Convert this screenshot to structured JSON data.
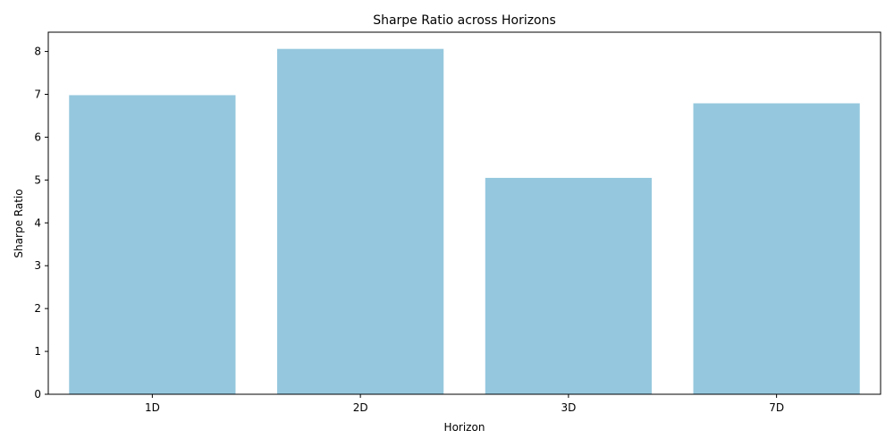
{
  "chart_data": {
    "type": "bar",
    "title": "Sharpe Ratio across Horizons",
    "xlabel": "Horizon",
    "ylabel": "Sharpe Ratio",
    "categories": [
      "1D",
      "2D",
      "3D",
      "7D"
    ],
    "values": [
      6.98,
      8.06,
      5.05,
      6.79
    ],
    "ylim": [
      0,
      8.45
    ],
    "yticks": [
      0,
      1,
      2,
      3,
      4,
      5,
      6,
      7,
      8
    ],
    "bar_color": "#95c8de",
    "grid": false,
    "legend": "none"
  }
}
